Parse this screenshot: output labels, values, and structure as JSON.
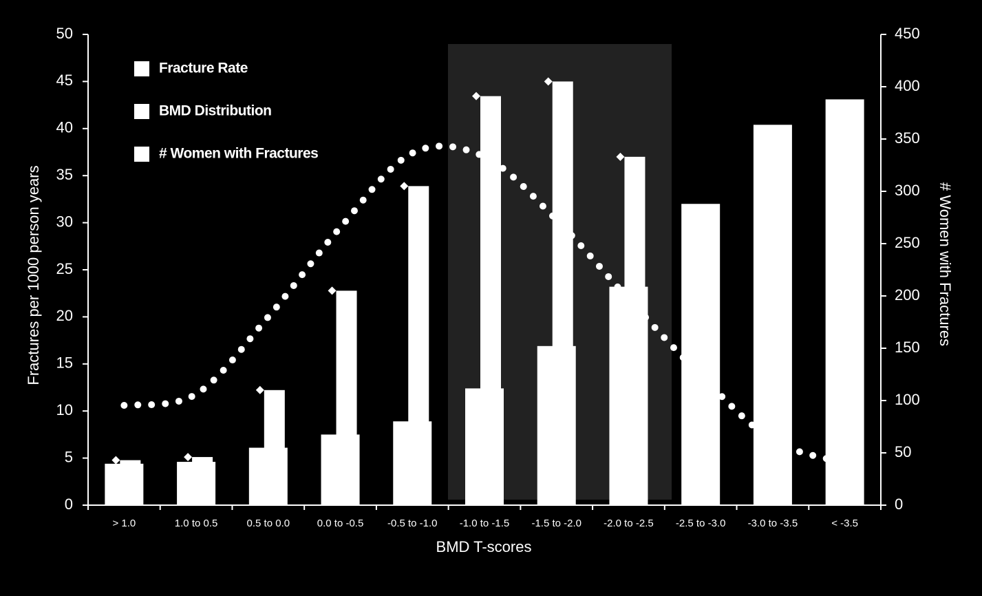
{
  "chart_data": {
    "type": "bar",
    "x_label": "BMD T-scores",
    "y_label": "Fractures per 1000 person years",
    "y2_label": "# Women with Fractures",
    "categories": [
      "> 1.0",
      "1.0 to 0.5",
      "0.5 to 0.0",
      "0.0 to -0.5",
      "-0.5 to -1.0",
      "-1.0 to -1.5",
      "-1.5 to -2.0",
      "-2.0 to -2.5",
      "-2.5 to -3.0",
      "-3.0 to -3.5",
      "< -3.5"
    ],
    "series": [
      {
        "name": "Fracture Rate",
        "color": "#ffffff",
        "type": "bar",
        "values": [
          4.4,
          4.6,
          6.1,
          7.5,
          8.9,
          12.4,
          16.9,
          23.2,
          32.0,
          40.4,
          43.1
        ]
      },
      {
        "name": "BMD Distribution",
        "color": "#ffffff",
        "type": "line",
        "values": [
          10.6,
          11.8,
          20.0,
          29.5,
          37.4,
          37.0,
          30.3,
          21.9,
          13.8,
          6.9,
          4.5
        ]
      },
      {
        "name": "# Women with Fractures",
        "color": "#ffffff",
        "type": "bar",
        "axis": "y2",
        "values": [
          43,
          46,
          110,
          205,
          305,
          391,
          405,
          333,
          null,
          null,
          null
        ]
      }
    ],
    "ylim": [
      0,
      50
    ],
    "yticks": [
      0,
      5,
      10,
      15,
      20,
      25,
      30,
      35,
      40,
      45,
      50
    ],
    "y2lim": [
      0,
      450
    ],
    "y2ticks": [
      0,
      50,
      100,
      150,
      200,
      250,
      300,
      350,
      400,
      450
    ],
    "legend": "upper left"
  }
}
